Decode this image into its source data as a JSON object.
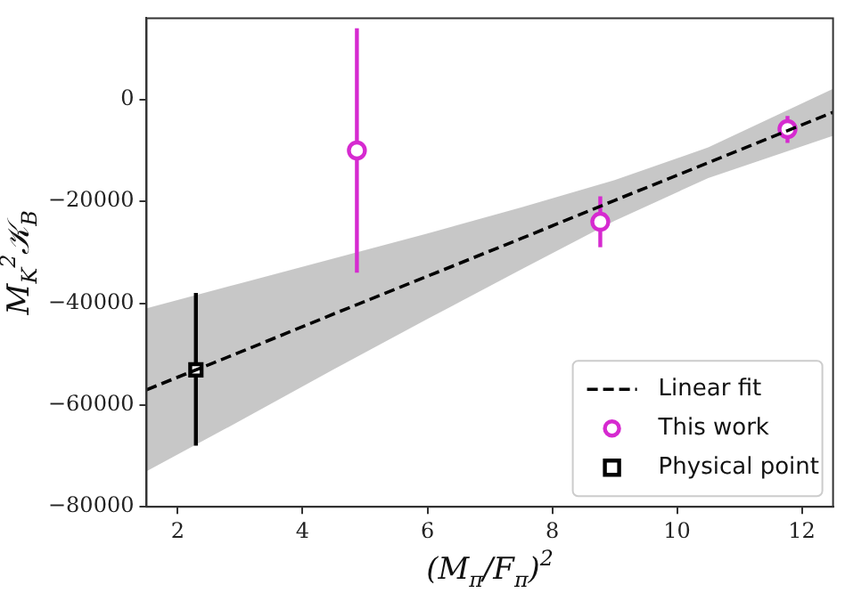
{
  "chart_data": {
    "type": "scatter",
    "xlabel": "(M$_{π}$/F$_{π}$)$^{2}$",
    "ylabel": "M$_{K}$$^{2}$𝒦$_{B}$",
    "xlim": [
      1.5,
      12.5
    ],
    "xticks": [
      2,
      4,
      6,
      8,
      10,
      12
    ],
    "ylim": [
      -80000,
      16000
    ],
    "yticks": [
      {
        "value": -80000,
        "label": "−80000"
      },
      {
        "value": -60000,
        "label": "−60000"
      },
      {
        "value": -40000,
        "label": "−40000"
      },
      {
        "value": -20000,
        "label": "−20000"
      },
      0
    ],
    "grid": false,
    "legend": "bottom right",
    "series": [
      {
        "name": "Linear fit",
        "type": "line",
        "color": "#000000",
        "line_style": "dashed",
        "marker": "none",
        "x": [
          1.5,
          3,
          4.5,
          6,
          7.5,
          9,
          10.5,
          12.5
        ],
        "values": [
          -57000,
          -49600,
          -42100,
          -34700,
          -27300,
          -19800,
          -12400,
          -2500
        ],
        "lower": [
          -73000,
          -63100,
          -53000,
          -43100,
          -33400,
          -23800,
          -15400,
          -7100
        ],
        "upper": [
          -41000,
          -36100,
          -31200,
          -26300,
          -21200,
          -15800,
          -9400,
          2100
        ]
      },
      {
        "name": "This work",
        "type": "scatter",
        "color": "#d62ad0",
        "marker": "circle",
        "x": [
          4.87,
          8.77,
          11.77
        ],
        "values": [
          -10000,
          -24000,
          -5800
        ],
        "errors": [
          [
            -34000,
            14000
          ],
          [
            -29000,
            -19000
          ],
          [
            -8500,
            -3200
          ]
        ]
      },
      {
        "name": "Physical point",
        "type": "scatter",
        "color": "#000000",
        "marker": "square",
        "x": [
          2.29
        ],
        "values": [
          -53100
        ],
        "errors": [
          [
            -68000,
            -38000
          ]
        ]
      }
    ]
  }
}
